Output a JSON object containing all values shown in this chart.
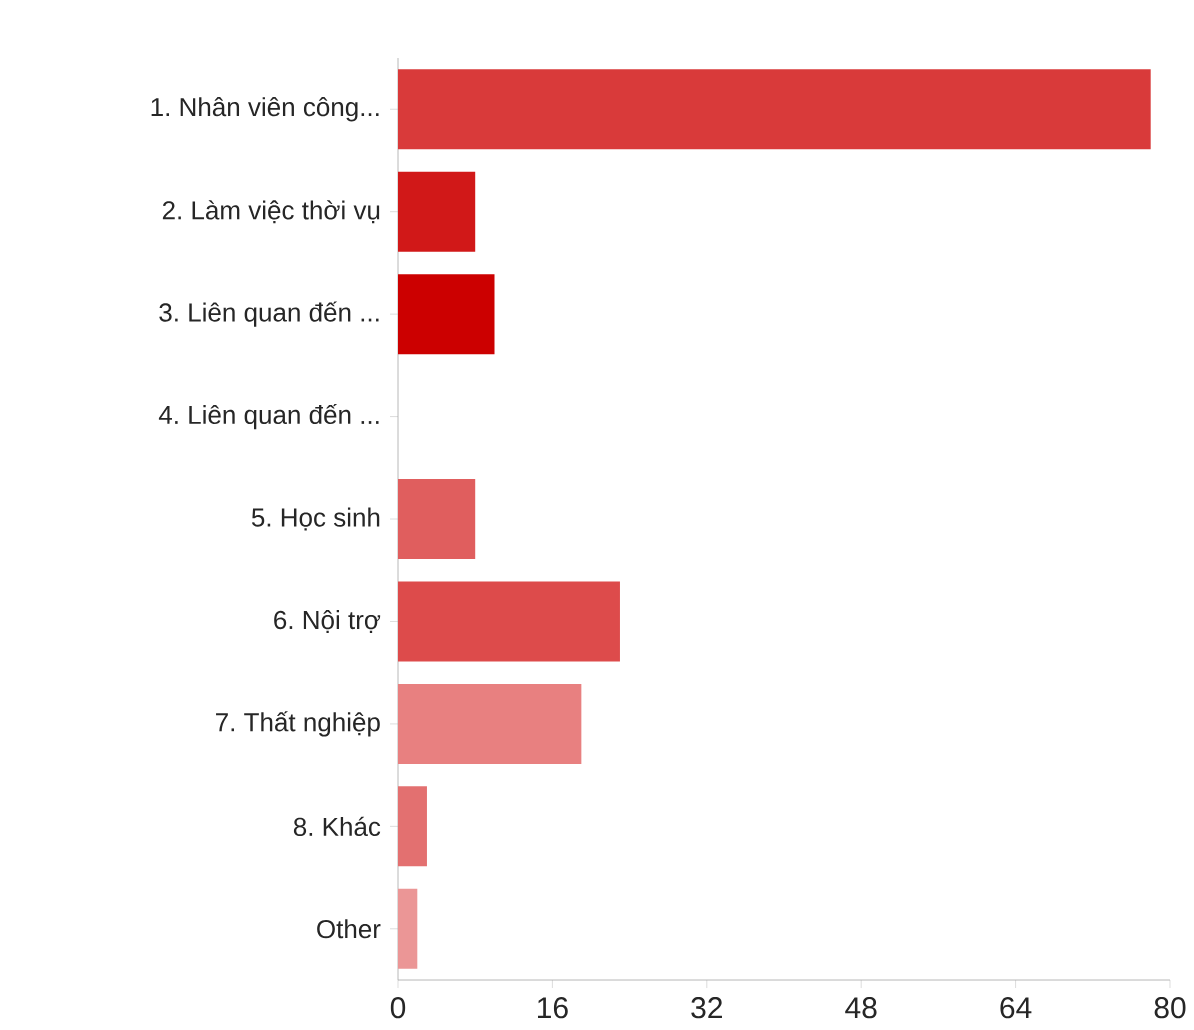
{
  "chart_data": {
    "type": "bar",
    "orientation": "horizontal",
    "categories": [
      "1. Nhân viên công...",
      "2. Làm việc thời vụ",
      "3. Liên quan đến ...",
      "4. Liên quan đến ...",
      "5. Học sinh",
      "6. Nội trợ",
      "7. Thất nghiệp",
      "8. Khác",
      "Other"
    ],
    "values": [
      78,
      8,
      10,
      0,
      8,
      23,
      19,
      3,
      2
    ],
    "colors": [
      "#d93a3a",
      "#d11818",
      "#cc0000",
      "#d93a3a",
      "#e05e5e",
      "#dd4b4b",
      "#e88080",
      "#e37070",
      "#eb9696"
    ],
    "xlim": [
      0,
      80
    ],
    "xticks": [
      0,
      16,
      32,
      48,
      64,
      80
    ],
    "grid": false
  }
}
